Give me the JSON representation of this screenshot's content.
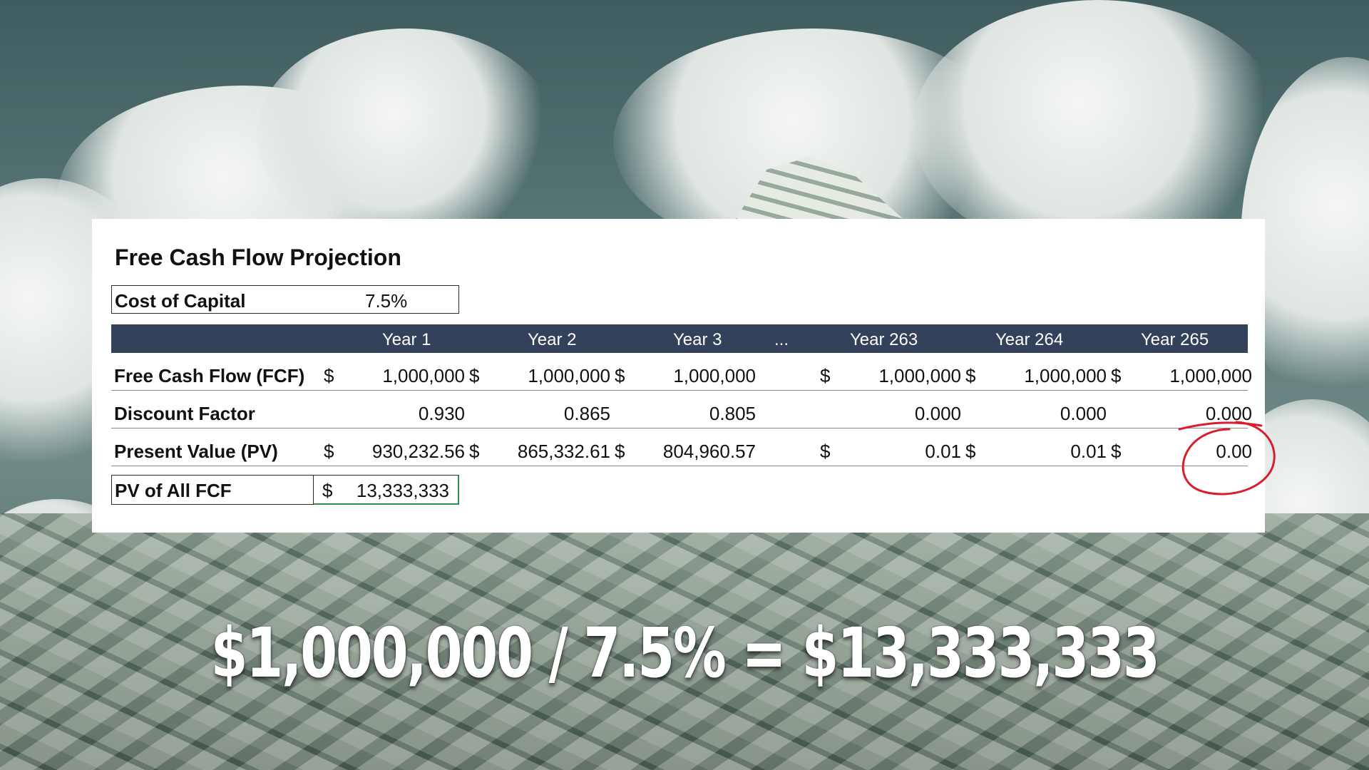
{
  "sheet": {
    "title": "Free Cash Flow Projection",
    "cost_of_capital": {
      "label": "Cost of Capital",
      "value": "7.5%"
    },
    "columns": [
      "Year 1",
      "Year 2",
      "Year 3",
      "...",
      "Year 263",
      "Year 264",
      "Year 265"
    ],
    "rows": [
      {
        "label": "Free Cash Flow (FCF)",
        "cells": [
          {
            "cur": "$",
            "val": "1,000,000"
          },
          {
            "cur": "$",
            "val": "1,000,000"
          },
          {
            "cur": "$",
            "val": "1,000,000"
          },
          {
            "cur": "",
            "val": ""
          },
          {
            "cur": "$",
            "val": "1,000,000"
          },
          {
            "cur": "$",
            "val": "1,000,000"
          },
          {
            "cur": "$",
            "val": "1,000,000"
          }
        ]
      },
      {
        "label": "Discount Factor",
        "cells": [
          {
            "cur": "",
            "val": "0.930"
          },
          {
            "cur": "",
            "val": "0.865"
          },
          {
            "cur": "",
            "val": "0.805"
          },
          {
            "cur": "",
            "val": ""
          },
          {
            "cur": "",
            "val": "0.000"
          },
          {
            "cur": "",
            "val": "0.000"
          },
          {
            "cur": "",
            "val": "0.000"
          }
        ]
      },
      {
        "label": "Present Value (PV)",
        "cells": [
          {
            "cur": "$",
            "val": "930,232.56"
          },
          {
            "cur": "$",
            "val": "865,332.61"
          },
          {
            "cur": "$",
            "val": "804,960.57"
          },
          {
            "cur": "",
            "val": ""
          },
          {
            "cur": "$",
            "val": "0.01"
          },
          {
            "cur": "$",
            "val": "0.01"
          },
          {
            "cur": "$",
            "val": "0.00"
          }
        ]
      }
    ],
    "pv_all": {
      "label": "PV of All FCF",
      "currency": "$",
      "value": "13,333,333"
    }
  },
  "formula": "$1,000,000 / 7.5% = $13,333,333",
  "colors": {
    "header_bg": "#34415a",
    "annotation": "#d81e2c",
    "selection": "#2f8f4a"
  }
}
